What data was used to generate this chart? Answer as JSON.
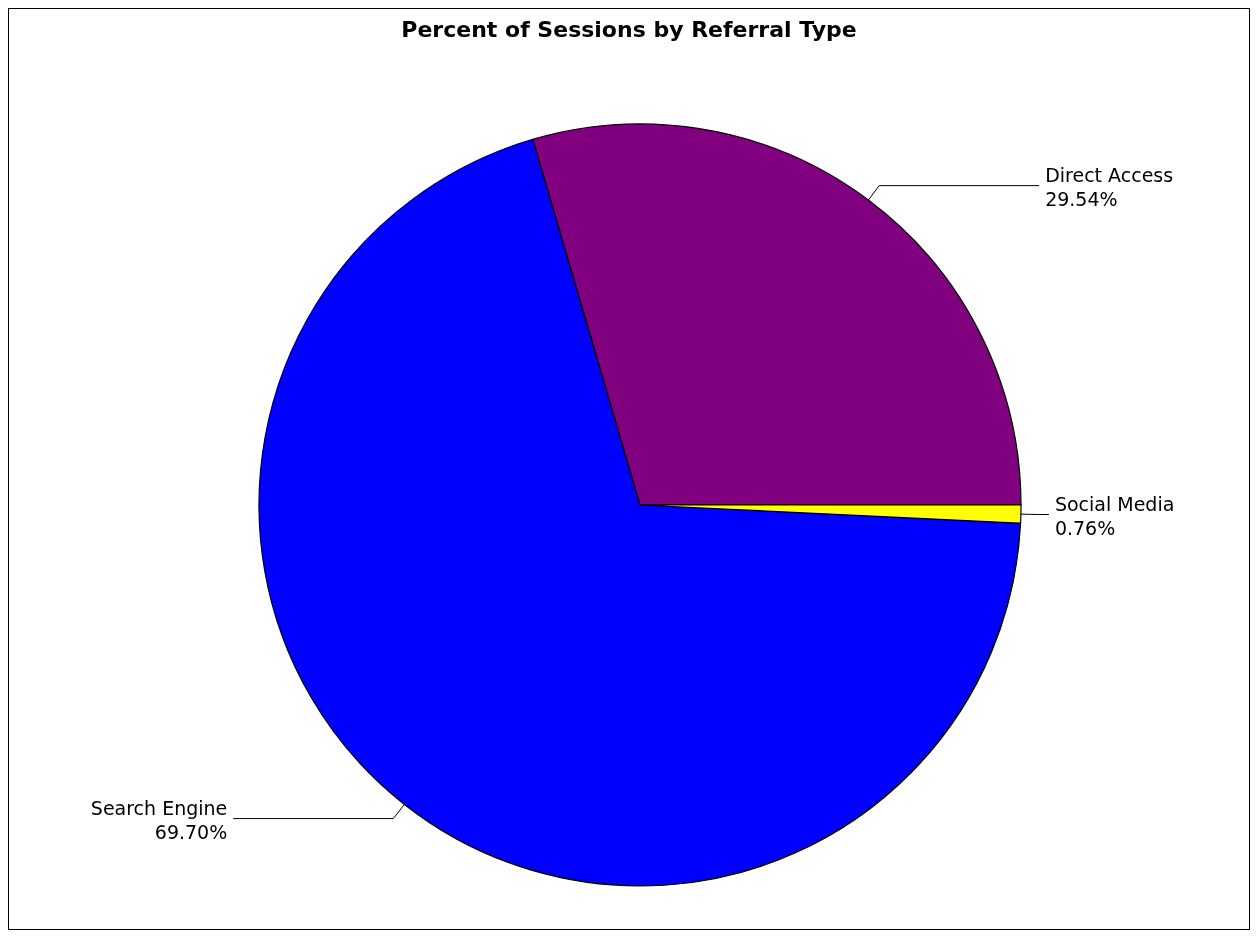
{
  "chart_data": {
    "type": "pie",
    "title": "Percent of Sessions by Referral Type",
    "categories": [
      "Direct Access",
      "Search Engine",
      "Social Media"
    ],
    "values": [
      29.54,
      69.7,
      0.76
    ],
    "value_labels": [
      "29.54%",
      "69.70%",
      "0.76%"
    ],
    "colors": [
      "#800080",
      "#0000ff",
      "#ffff00"
    ],
    "legend": false
  }
}
